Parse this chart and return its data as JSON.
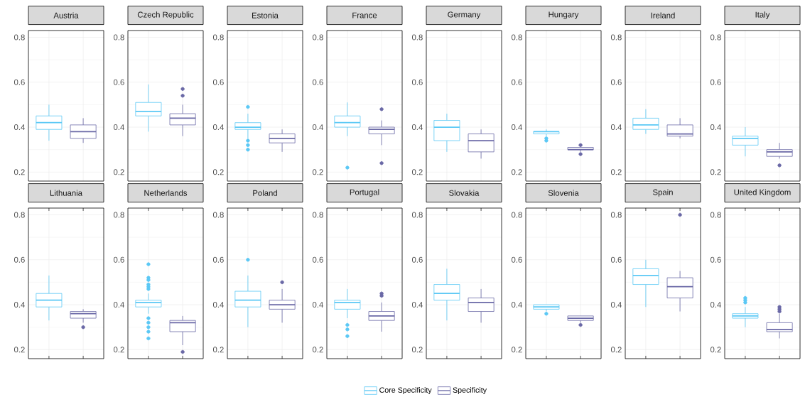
{
  "chart_data": [
    {
      "type": "box",
      "title": "Austria",
      "categories": [
        null,
        null
      ],
      "ylim": [
        0.16,
        0.83
      ],
      "yticks": [
        0.2,
        0.4,
        0.6,
        0.8
      ],
      "grid": true,
      "series": [
        {
          "color": "#5BC8F5",
          "boxes": [
            {
              "low": 0.34,
              "q1": 0.39,
              "median": 0.42,
              "q3": 0.45,
              "high": 0.5
            },
            null
          ]
        },
        {
          "color": "#6A68A6",
          "boxes": [
            null,
            {
              "low": 0.33,
              "q1": 0.35,
              "median": 0.38,
              "q3": 0.41,
              "high": 0.44
            }
          ]
        }
      ]
    },
    {
      "type": "box",
      "title": "Czech Republic",
      "categories": [
        null,
        null
      ],
      "ylim": [
        0.16,
        0.83
      ],
      "yticks": [
        0.2,
        0.4,
        0.6,
        0.8
      ],
      "grid": true,
      "series": [
        {
          "color": "#5BC8F5",
          "boxes": [
            {
              "low": 0.38,
              "q1": 0.45,
              "median": 0.47,
              "q3": 0.51,
              "high": 0.59
            },
            null
          ]
        },
        {
          "color": "#6A68A6",
          "boxes": [
            null,
            {
              "low": 0.36,
              "q1": 0.41,
              "median": 0.44,
              "q3": 0.46,
              "high": 0.5,
              "outliers": [
                0.57,
                0.54
              ]
            }
          ]
        }
      ]
    },
    {
      "type": "box",
      "title": "Estonia",
      "categories": [
        null,
        null
      ],
      "ylim": [
        0.16,
        0.83
      ],
      "yticks": [
        0.2,
        0.4,
        0.6,
        0.8
      ],
      "grid": true,
      "series": [
        {
          "color": "#5BC8F5",
          "boxes": [
            {
              "low": 0.35,
              "q1": 0.39,
              "median": 0.4,
              "q3": 0.42,
              "high": 0.46,
              "outliers": [
                0.49,
                0.34,
                0.32,
                0.3
              ]
            },
            null
          ]
        },
        {
          "color": "#6A68A6",
          "boxes": [
            null,
            {
              "low": 0.29,
              "q1": 0.33,
              "median": 0.35,
              "q3": 0.37,
              "high": 0.39
            }
          ]
        }
      ]
    },
    {
      "type": "box",
      "title": "France",
      "categories": [
        null,
        null
      ],
      "ylim": [
        0.16,
        0.83
      ],
      "yticks": [
        0.2,
        0.4,
        0.6,
        0.8
      ],
      "grid": true,
      "series": [
        {
          "color": "#5BC8F5",
          "boxes": [
            {
              "low": 0.36,
              "q1": 0.4,
              "median": 0.42,
              "q3": 0.45,
              "high": 0.51,
              "outliers": [
                0.22
              ]
            },
            null
          ]
        },
        {
          "color": "#6A68A6",
          "boxes": [
            null,
            {
              "low": 0.32,
              "q1": 0.37,
              "median": 0.39,
              "q3": 0.4,
              "high": 0.43,
              "outliers": [
                0.48,
                0.24
              ]
            }
          ]
        }
      ]
    },
    {
      "type": "box",
      "title": "Germany",
      "categories": [
        null,
        null
      ],
      "ylim": [
        0.16,
        0.83
      ],
      "yticks": [
        0.2,
        0.4,
        0.6,
        0.8
      ],
      "grid": true,
      "series": [
        {
          "color": "#5BC8F5",
          "boxes": [
            {
              "low": 0.29,
              "q1": 0.34,
              "median": 0.4,
              "q3": 0.43,
              "high": 0.46
            },
            null
          ]
        },
        {
          "color": "#6A68A6",
          "boxes": [
            null,
            {
              "low": 0.26,
              "q1": 0.29,
              "median": 0.34,
              "q3": 0.37,
              "high": 0.39
            }
          ]
        }
      ]
    },
    {
      "type": "box",
      "title": "Hungary",
      "categories": [
        null,
        null
      ],
      "ylim": [
        0.16,
        0.83
      ],
      "yticks": [
        0.2,
        0.4,
        0.6,
        0.8
      ],
      "grid": true,
      "series": [
        {
          "color": "#5BC8F5",
          "boxes": [
            {
              "low": 0.36,
              "q1": 0.37,
              "median": 0.38,
              "q3": 0.38,
              "high": 0.39,
              "outliers": [
                0.35,
                0.34
              ]
            },
            null
          ]
        },
        {
          "color": "#6A68A6",
          "boxes": [
            null,
            {
              "low": 0.29,
              "q1": 0.3,
              "median": 0.3,
              "q3": 0.31,
              "high": 0.31,
              "outliers": [
                0.32,
                0.28
              ]
            }
          ]
        }
      ]
    },
    {
      "type": "box",
      "title": "Ireland",
      "categories": [
        null,
        null
      ],
      "ylim": [
        0.16,
        0.83
      ],
      "yticks": [
        0.2,
        0.4,
        0.6,
        0.8
      ],
      "grid": true,
      "series": [
        {
          "color": "#5BC8F5",
          "boxes": [
            {
              "low": 0.37,
              "q1": 0.39,
              "median": 0.41,
              "q3": 0.44,
              "high": 0.48
            },
            null
          ]
        },
        {
          "color": "#6A68A6",
          "boxes": [
            null,
            {
              "low": 0.35,
              "q1": 0.36,
              "median": 0.37,
              "q3": 0.41,
              "high": 0.44
            }
          ]
        }
      ]
    },
    {
      "type": "box",
      "title": "Italy",
      "categories": [
        null,
        null
      ],
      "ylim": [
        0.16,
        0.83
      ],
      "yticks": [
        0.2,
        0.4,
        0.6,
        0.8
      ],
      "grid": true,
      "series": [
        {
          "color": "#5BC8F5",
          "boxes": [
            {
              "low": 0.27,
              "q1": 0.32,
              "median": 0.35,
              "q3": 0.36,
              "high": 0.4
            },
            null
          ]
        },
        {
          "color": "#6A68A6",
          "boxes": [
            null,
            {
              "low": 0.26,
              "q1": 0.27,
              "median": 0.29,
              "q3": 0.3,
              "high": 0.33,
              "outliers": [
                0.23
              ]
            }
          ]
        }
      ]
    },
    {
      "type": "box",
      "title": "Lithuania",
      "categories": [
        null,
        null
      ],
      "ylim": [
        0.16,
        0.83
      ],
      "yticks": [
        0.2,
        0.4,
        0.6,
        0.8
      ],
      "grid": true,
      "series": [
        {
          "color": "#5BC8F5",
          "boxes": [
            {
              "low": 0.33,
              "q1": 0.39,
              "median": 0.42,
              "q3": 0.45,
              "high": 0.53
            },
            null
          ]
        },
        {
          "color": "#6A68A6",
          "boxes": [
            null,
            {
              "low": 0.32,
              "q1": 0.34,
              "median": 0.36,
              "q3": 0.37,
              "high": 0.38,
              "outliers": [
                0.3
              ]
            }
          ]
        }
      ]
    },
    {
      "type": "box",
      "title": "Netherlands",
      "categories": [
        null,
        null
      ],
      "ylim": [
        0.16,
        0.83
      ],
      "yticks": [
        0.2,
        0.4,
        0.6,
        0.8
      ],
      "grid": true,
      "series": [
        {
          "color": "#5BC8F5",
          "boxes": [
            {
              "low": 0.36,
              "q1": 0.39,
              "median": 0.41,
              "q3": 0.42,
              "high": 0.45,
              "outliers": [
                0.58,
                0.52,
                0.51,
                0.49,
                0.48,
                0.47,
                0.34,
                0.32,
                0.3,
                0.28,
                0.25
              ]
            },
            null
          ]
        },
        {
          "color": "#6A68A6",
          "boxes": [
            null,
            {
              "low": 0.22,
              "q1": 0.28,
              "median": 0.32,
              "q3": 0.33,
              "high": 0.35,
              "outliers": [
                0.19
              ]
            }
          ]
        }
      ]
    },
    {
      "type": "box",
      "title": "Poland",
      "categories": [
        null,
        null
      ],
      "ylim": [
        0.16,
        0.83
      ],
      "yticks": [
        0.2,
        0.4,
        0.6,
        0.8
      ],
      "grid": true,
      "series": [
        {
          "color": "#5BC8F5",
          "boxes": [
            {
              "low": 0.3,
              "q1": 0.39,
              "median": 0.42,
              "q3": 0.46,
              "high": 0.53,
              "outliers": [
                0.6
              ]
            },
            null
          ]
        },
        {
          "color": "#6A68A6",
          "boxes": [
            null,
            {
              "low": 0.32,
              "q1": 0.38,
              "median": 0.4,
              "q3": 0.42,
              "high": 0.47,
              "outliers": [
                0.5
              ]
            }
          ]
        }
      ]
    },
    {
      "type": "box",
      "title": "Portugal",
      "categories": [
        null,
        null
      ],
      "ylim": [
        0.16,
        0.83
      ],
      "yticks": [
        0.2,
        0.4,
        0.6,
        0.8
      ],
      "grid": true,
      "series": [
        {
          "color": "#5BC8F5",
          "boxes": [
            {
              "low": 0.34,
              "q1": 0.38,
              "median": 0.41,
              "q3": 0.42,
              "high": 0.47,
              "outliers": [
                0.31,
                0.29,
                0.26
              ]
            },
            null
          ]
        },
        {
          "color": "#6A68A6",
          "boxes": [
            null,
            {
              "low": 0.28,
              "q1": 0.33,
              "median": 0.35,
              "q3": 0.37,
              "high": 0.41,
              "outliers": [
                0.45,
                0.44
              ]
            }
          ]
        }
      ]
    },
    {
      "type": "box",
      "title": "Slovakia",
      "categories": [
        null,
        null
      ],
      "ylim": [
        0.16,
        0.83
      ],
      "yticks": [
        0.2,
        0.4,
        0.6,
        0.8
      ],
      "grid": true,
      "legend": "bottom",
      "series": [
        {
          "name": "Core Specificity",
          "color": "#5BC8F5",
          "boxes": [
            {
              "low": 0.33,
              "q1": 0.42,
              "median": 0.45,
              "q3": 0.49,
              "high": 0.56
            },
            null
          ]
        },
        {
          "name": "Specificity",
          "color": "#6A68A6",
          "boxes": [
            null,
            {
              "low": 0.32,
              "q1": 0.37,
              "median": 0.41,
              "q3": 0.43,
              "high": 0.47
            }
          ]
        }
      ]
    },
    {
      "type": "box",
      "title": "Slovenia",
      "categories": [
        null,
        null
      ],
      "ylim": [
        0.16,
        0.83
      ],
      "yticks": [
        0.2,
        0.4,
        0.6,
        0.8
      ],
      "grid": true,
      "series": [
        {
          "color": "#5BC8F5",
          "boxes": [
            {
              "low": 0.37,
              "q1": 0.38,
              "median": 0.39,
              "q3": 0.4,
              "high": 0.4,
              "outliers": [
                0.36
              ]
            },
            null
          ]
        },
        {
          "color": "#6A68A6",
          "boxes": [
            null,
            {
              "low": 0.32,
              "q1": 0.33,
              "median": 0.34,
              "q3": 0.35,
              "high": 0.35,
              "outliers": [
                0.31
              ]
            }
          ]
        }
      ]
    },
    {
      "type": "box",
      "title": "Spain",
      "categories": [
        null,
        null
      ],
      "ylim": [
        0.16,
        0.83
      ],
      "yticks": [
        0.2,
        0.4,
        0.6,
        0.8
      ],
      "grid": true,
      "series": [
        {
          "color": "#5BC8F5",
          "boxes": [
            {
              "low": 0.39,
              "q1": 0.49,
              "median": 0.53,
              "q3": 0.56,
              "high": 0.6
            },
            null
          ]
        },
        {
          "color": "#6A68A6",
          "boxes": [
            null,
            {
              "low": 0.37,
              "q1": 0.43,
              "median": 0.48,
              "q3": 0.52,
              "high": 0.55,
              "outliers": [
                0.8
              ]
            }
          ]
        }
      ]
    },
    {
      "type": "box",
      "title": "United Kingdom",
      "categories": [
        null,
        null
      ],
      "ylim": [
        0.16,
        0.83
      ],
      "yticks": [
        0.2,
        0.4,
        0.6,
        0.8
      ],
      "grid": true,
      "series": [
        {
          "color": "#5BC8F5",
          "boxes": [
            {
              "low": 0.3,
              "q1": 0.34,
              "median": 0.35,
              "q3": 0.36,
              "high": 0.39,
              "outliers": [
                0.43,
                0.42,
                0.41
              ]
            },
            null
          ]
        },
        {
          "color": "#6A68A6",
          "boxes": [
            null,
            {
              "low": 0.25,
              "q1": 0.28,
              "median": 0.29,
              "q3": 0.32,
              "high": 0.36,
              "outliers": [
                0.39,
                0.38,
                0.37
              ]
            }
          ]
        }
      ]
    }
  ]
}
